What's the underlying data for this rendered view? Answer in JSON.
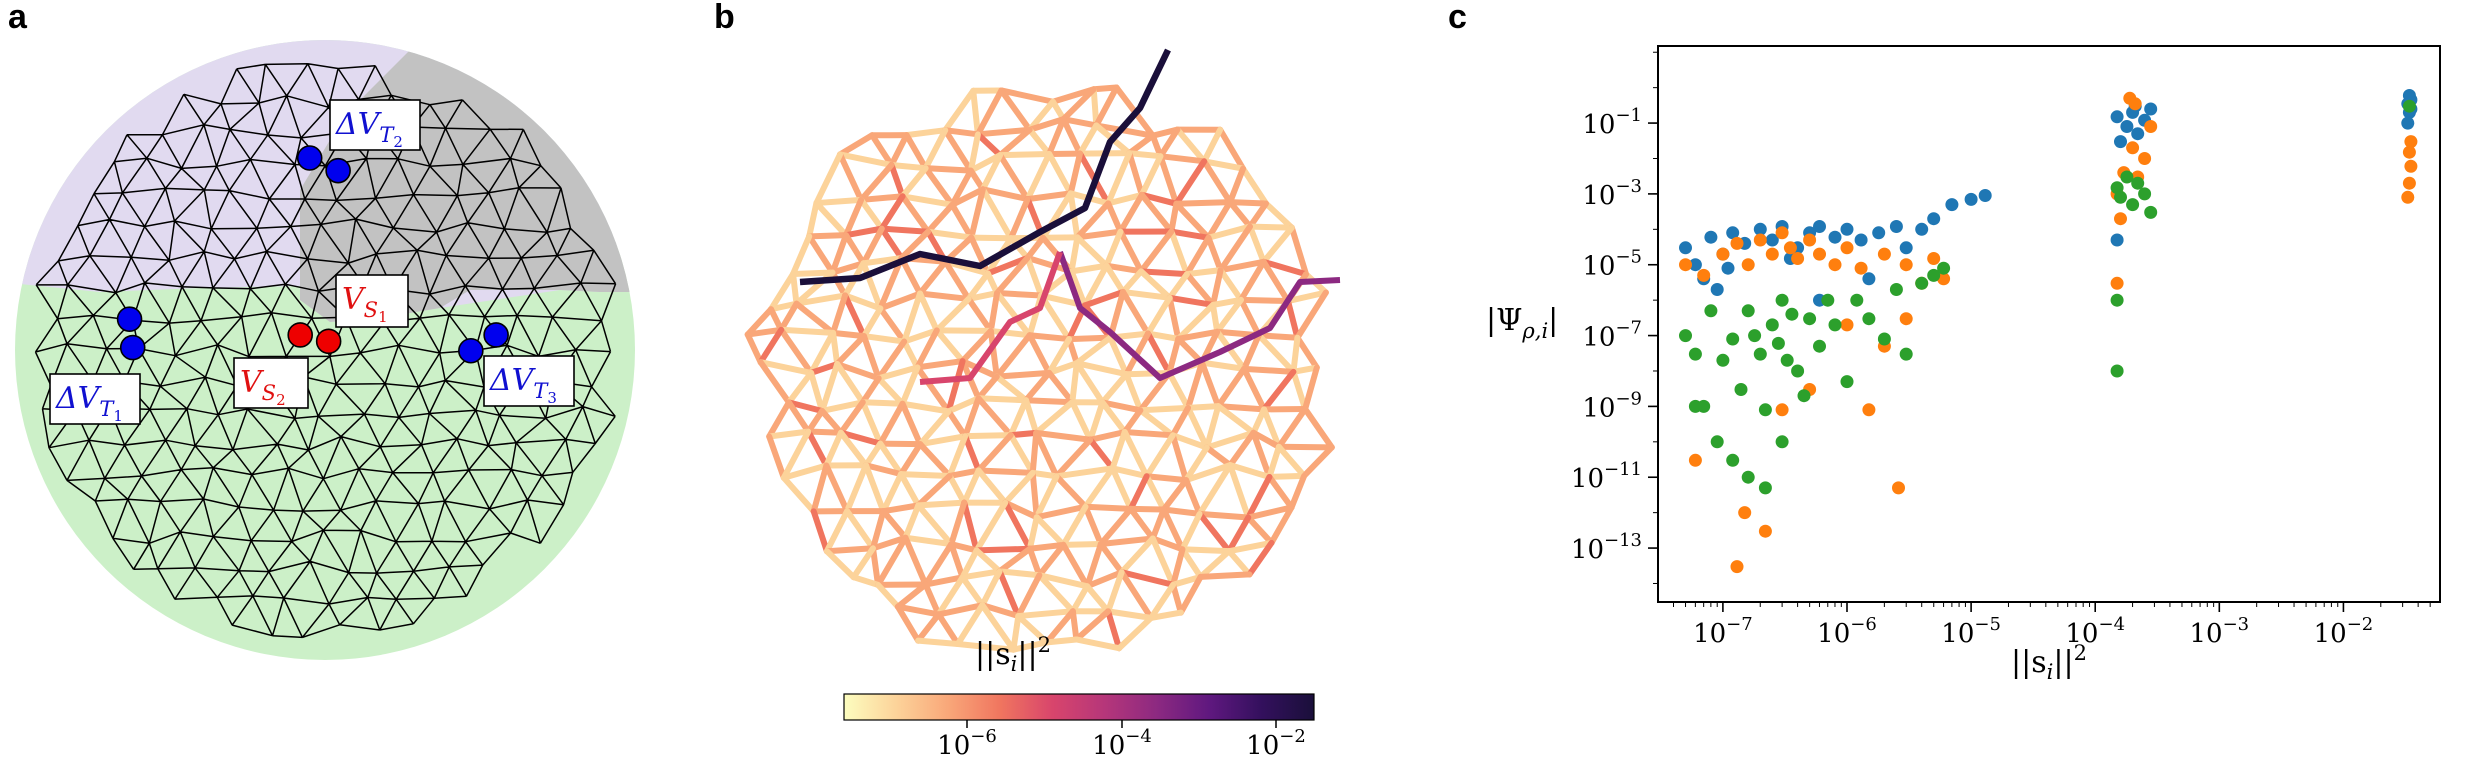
{
  "panels": {
    "a": {
      "label": "a",
      "labels": [
        {
          "text": "ΔV",
          "sub": "T",
          "subsub": "2",
          "color": "#1010d0"
        },
        {
          "text": "V",
          "sub": "S",
          "subsub": "1",
          "color": "#e01010"
        },
        {
          "text": "V",
          "sub": "S",
          "subsub": "2",
          "color": "#e01010"
        },
        {
          "text": "ΔV",
          "sub": "T",
          "subsub": "1",
          "color": "#1010d0"
        },
        {
          "text": "ΔV",
          "sub": "T",
          "subsub": "3",
          "color": "#1010d0"
        }
      ],
      "colors": {
        "purple": "#e1daf0",
        "gray": "#c2c2c2",
        "green": "#ccf0c8",
        "mesh": "#000000",
        "electrode_blue": "#0000ee",
        "electrode_red": "#ee0000"
      }
    },
    "b": {
      "label": "b",
      "xlabel": "||s",
      "xlabel_sub": "i",
      "xlabel_tail": "||",
      "xlabel_sup": "2",
      "colorbar": {
        "ticks": [
          {
            "base": "10",
            "exp": "−6"
          },
          {
            "base": "10",
            "exp": "−4"
          },
          {
            "base": "10",
            "exp": "−2"
          }
        ],
        "colors": [
          "#fcfdbf",
          "#fcd39a",
          "#f9a779",
          "#f0755f",
          "#d8456c",
          "#b5367a",
          "#8c2981",
          "#5f187f",
          "#33105d",
          "#1a0f3a"
        ]
      }
    },
    "c": {
      "label": "c",
      "chart_data": {
        "type": "scatter",
        "title": "",
        "xlabel": "||s_i||^2",
        "ylabel": "|Ψ_ρ,i|",
        "xscale": "log",
        "yscale": "log",
        "xlim": [
          3e-08,
          0.06
        ],
        "ylim": [
          3e-15,
          15
        ],
        "x_ticks": [
          {
            "value": 1e-07,
            "base": "10",
            "exp": "−7"
          },
          {
            "value": 1e-06,
            "base": "10",
            "exp": "−6"
          },
          {
            "value": 1e-05,
            "base": "10",
            "exp": "−5"
          },
          {
            "value": 0.0001,
            "base": "10",
            "exp": "−4"
          },
          {
            "value": 0.001,
            "base": "10",
            "exp": "−3"
          },
          {
            "value": 0.01,
            "base": "10",
            "exp": "−2"
          }
        ],
        "y_ticks": [
          {
            "value": 0.1,
            "base": "10",
            "exp": "−1"
          },
          {
            "value": 0.001,
            "base": "10",
            "exp": "−3"
          },
          {
            "value": 1e-05,
            "base": "10",
            "exp": "−5"
          },
          {
            "value": 1e-07,
            "base": "10",
            "exp": "−7"
          },
          {
            "value": 1e-09,
            "base": "10",
            "exp": "−9"
          },
          {
            "value": 1e-11,
            "base": "10",
            "exp": "−11"
          },
          {
            "value": 1e-13,
            "base": "10",
            "exp": "−13"
          }
        ],
        "series": [
          {
            "color": "#1f77b4",
            "points": [
              [
                5e-08,
                3e-05
              ],
              [
                6e-08,
                1e-05
              ],
              [
                8e-08,
                6e-05
              ],
              [
                1e-07,
                2e-05
              ],
              [
                1.2e-07,
                8e-05
              ],
              [
                1.5e-07,
                4e-05
              ],
              [
                2e-07,
                0.0001
              ],
              [
                2.5e-07,
                5e-05
              ],
              [
                3e-07,
                0.00012
              ],
              [
                4e-07,
                3e-05
              ],
              [
                5e-07,
                8e-05
              ],
              [
                6e-07,
                0.00012
              ],
              [
                8e-07,
                6e-05
              ],
              [
                1e-06,
                0.0001
              ],
              [
                1.3e-06,
                5e-05
              ],
              [
                1.8e-06,
                8e-05
              ],
              [
                2.5e-06,
                0.00012
              ],
              [
                3e-06,
                3e-05
              ],
              [
                4e-06,
                0.0001
              ],
              [
                5e-06,
                0.0002
              ],
              [
                7e-06,
                0.0005
              ],
              [
                1e-05,
                0.0007
              ],
              [
                1.3e-05,
                0.0009
              ],
              [
                7e-08,
                4e-06
              ],
              [
                9e-08,
                2e-06
              ],
              [
                1.1e-07,
                8e-06
              ],
              [
                3.5e-07,
                1.5e-05
              ],
              [
                6e-07,
                1e-06
              ],
              [
                1.5e-06,
                4e-06
              ],
              [
                0.00015,
                0.15
              ],
              [
                0.00018,
                0.08
              ],
              [
                0.0002,
                0.2
              ],
              [
                0.00022,
                0.05
              ],
              [
                0.00025,
                0.12
              ],
              [
                0.00028,
                0.25
              ],
              [
                0.00016,
                0.03
              ],
              [
                0.00021,
                0.3
              ],
              [
                0.00015,
                5e-05
              ],
              [
                0.033,
                0.35
              ],
              [
                0.034,
                0.2
              ],
              [
                0.035,
                0.45
              ],
              [
                0.033,
                0.1
              ],
              [
                0.034,
                0.6
              ],
              [
                0.035,
                0.25
              ]
            ]
          },
          {
            "color": "#ff7f0e",
            "points": [
              [
                5e-08,
                1e-05
              ],
              [
                7e-08,
                5e-06
              ],
              [
                1e-07,
                2e-05
              ],
              [
                1.3e-07,
                4e-05
              ],
              [
                1.6e-07,
                1e-05
              ],
              [
                2e-07,
                5e-05
              ],
              [
                2.5e-07,
                2e-05
              ],
              [
                3e-07,
                8e-05
              ],
              [
                3.5e-07,
                3e-05
              ],
              [
                4e-07,
                1.5e-05
              ],
              [
                5e-07,
                5e-05
              ],
              [
                6e-07,
                2e-05
              ],
              [
                8e-07,
                1e-05
              ],
              [
                1e-06,
                3e-05
              ],
              [
                1.3e-06,
                8e-06
              ],
              [
                2e-06,
                2e-05
              ],
              [
                3e-06,
                1e-05
              ],
              [
                4e-06,
                3e-06
              ],
              [
                5e-06,
                1.5e-05
              ],
              [
                6e-06,
                4e-06
              ],
              [
                1e-06,
                2e-07
              ],
              [
                2e-06,
                5e-08
              ],
              [
                3e-06,
                3e-07
              ],
              [
                5e-07,
                3e-09
              ],
              [
                1.5e-06,
                8e-10
              ],
              [
                2.6e-06,
                5e-12
              ],
              [
                1.3e-07,
                3e-14
              ],
              [
                1.5e-07,
                1e-12
              ],
              [
                2.2e-07,
                3e-13
              ],
              [
                6e-08,
                3e-11
              ],
              [
                3e-07,
                8e-10
              ],
              [
                0.00015,
                0.001
              ],
              [
                0.00017,
                0.004
              ],
              [
                0.0002,
                0.02
              ],
              [
                0.00022,
                0.003
              ],
              [
                0.00025,
                0.01
              ],
              [
                0.00028,
                0.08
              ],
              [
                0.00019,
                0.5
              ],
              [
                0.00021,
                0.35
              ],
              [
                0.00016,
                0.0002
              ],
              [
                0.00015,
                3e-06
              ],
              [
                0.033,
                0.0008
              ],
              [
                0.034,
                0.002
              ],
              [
                0.035,
                0.006
              ],
              [
                0.034,
                0.015
              ],
              [
                0.035,
                0.03
              ]
            ]
          },
          {
            "color": "#2ca02c",
            "points": [
              [
                5e-08,
                1e-07
              ],
              [
                6e-08,
                3e-08
              ],
              [
                7e-08,
                1e-09
              ],
              [
                8e-08,
                5e-07
              ],
              [
                1e-07,
                2e-08
              ],
              [
                1.2e-07,
                8e-08
              ],
              [
                1.4e-07,
                3e-09
              ],
              [
                1.6e-07,
                5e-07
              ],
              [
                1.8e-07,
                1e-07
              ],
              [
                2e-07,
                3e-08
              ],
              [
                2.2e-07,
                8e-10
              ],
              [
                2.5e-07,
                2e-07
              ],
              [
                2.8e-07,
                6e-08
              ],
              [
                3e-07,
                1e-06
              ],
              [
                3.3e-07,
                2e-08
              ],
              [
                3.6e-07,
                4e-07
              ],
              [
                4e-07,
                1e-08
              ],
              [
                4.5e-07,
                2e-09
              ],
              [
                5e-07,
                3e-07
              ],
              [
                6e-07,
                5e-08
              ],
              [
                7e-07,
                1e-06
              ],
              [
                8e-07,
                2e-07
              ],
              [
                1e-06,
                5e-09
              ],
              [
                1.2e-06,
                1e-06
              ],
              [
                1.5e-06,
                3e-07
              ],
              [
                2e-06,
                8e-08
              ],
              [
                2.5e-06,
                2e-06
              ],
              [
                3e-06,
                3e-08
              ],
              [
                4e-06,
                3e-06
              ],
              [
                5e-06,
                5e-06
              ],
              [
                6e-06,
                8e-06
              ],
              [
                9e-08,
                1e-10
              ],
              [
                1.2e-07,
                3e-11
              ],
              [
                1.6e-07,
                1e-11
              ],
              [
                2.2e-07,
                5e-12
              ],
              [
                6e-08,
                1e-09
              ],
              [
                3e-07,
                1e-10
              ],
              [
                0.00015,
                0.0015
              ],
              [
                0.00016,
                0.0008
              ],
              [
                0.00018,
                0.003
              ],
              [
                0.0002,
                0.0005
              ],
              [
                0.00022,
                0.002
              ],
              [
                0.00025,
                0.001
              ],
              [
                0.00028,
                0.0003
              ],
              [
                0.00015,
                1e-06
              ],
              [
                0.00015,
                1e-08
              ],
              [
                0.034,
                0.3
              ]
            ]
          }
        ]
      }
    }
  }
}
